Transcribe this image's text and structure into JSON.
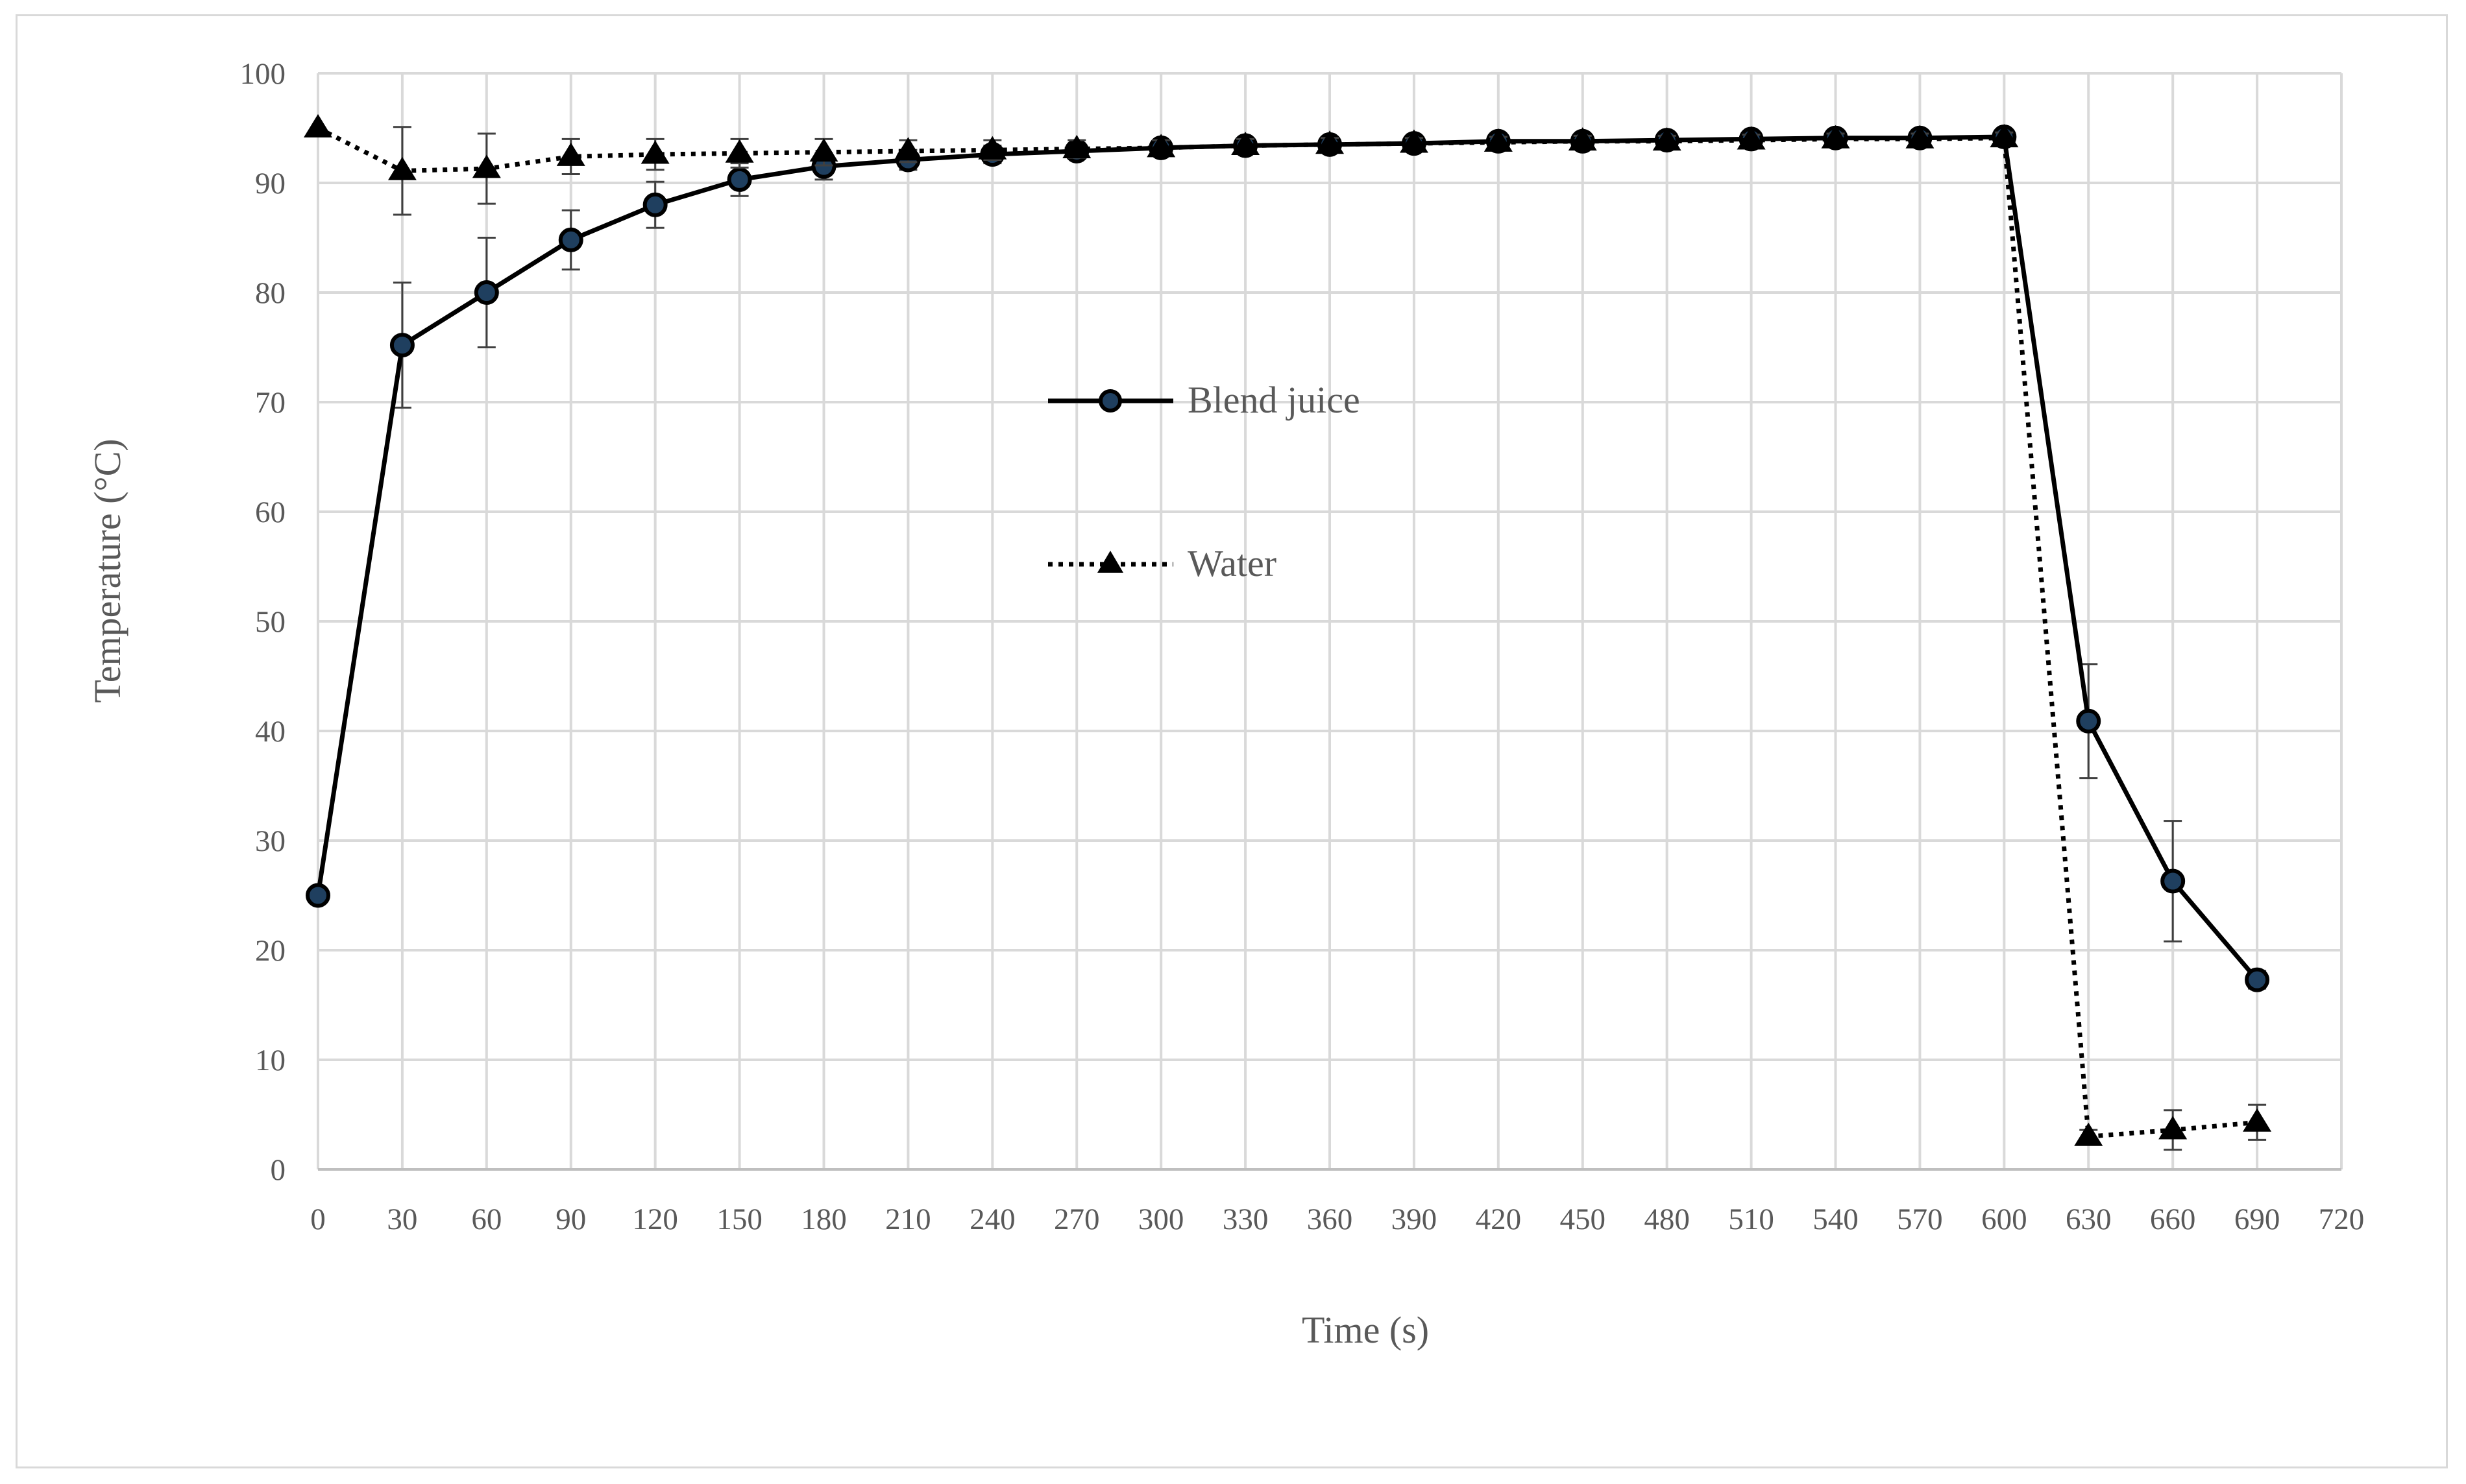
{
  "chart_data": {
    "type": "line",
    "title": "",
    "xlabel": "Time (s)",
    "ylabel": "Temperature (°C)",
    "xlim": [
      0,
      720
    ],
    "ylim": [
      0,
      100
    ],
    "x_ticks": [
      0,
      30,
      60,
      90,
      120,
      150,
      180,
      210,
      240,
      270,
      300,
      330,
      360,
      390,
      420,
      450,
      480,
      510,
      540,
      570,
      600,
      630,
      660,
      690,
      720
    ],
    "y_ticks": [
      0,
      10,
      20,
      30,
      40,
      50,
      60,
      70,
      80,
      90,
      100
    ],
    "grid": true,
    "legend_position": "center",
    "x": [
      0,
      30,
      60,
      90,
      120,
      150,
      180,
      210,
      240,
      270,
      300,
      330,
      360,
      390,
      420,
      450,
      480,
      510,
      540,
      570,
      600,
      630,
      660,
      690
    ],
    "series": [
      {
        "name": "Blend juice",
        "line_style": "solid",
        "marker": "circle",
        "color": "#000000",
        "marker_fill": "#1f3f5f",
        "values": [
          25.0,
          75.2,
          80.0,
          84.8,
          88.0,
          90.3,
          91.5,
          92.1,
          92.6,
          92.9,
          93.2,
          93.4,
          93.5,
          93.6,
          93.8,
          93.8,
          93.9,
          94.0,
          94.1,
          94.1,
          94.2,
          40.9,
          26.3,
          17.3
        ],
        "error": [
          0,
          5.7,
          5.0,
          2.7,
          2.1,
          1.5,
          1.2,
          0.9,
          0.8,
          0.6,
          0.6,
          0.5,
          0.5,
          0.5,
          0.4,
          0.4,
          0.4,
          0.4,
          0.4,
          0.4,
          0.4,
          5.2,
          5.5,
          0.8
        ]
      },
      {
        "name": "Water",
        "line_style": "dotted",
        "marker": "triangle",
        "color": "#000000",
        "values": [
          95.0,
          91.1,
          91.3,
          92.4,
          92.6,
          92.7,
          92.8,
          92.9,
          93.0,
          93.1,
          93.2,
          93.4,
          93.5,
          93.6,
          93.7,
          93.8,
          93.8,
          93.9,
          94.0,
          94.0,
          94.1,
          3.0,
          3.6,
          4.3
        ],
        "error": [
          0,
          4.0,
          3.2,
          1.6,
          1.4,
          1.3,
          1.2,
          1.0,
          0.9,
          0.8,
          0.7,
          0.6,
          0.6,
          0.5,
          0.5,
          0.5,
          0.5,
          0.5,
          0.5,
          0.5,
          0.5,
          0.6,
          1.8,
          1.6
        ]
      }
    ]
  }
}
